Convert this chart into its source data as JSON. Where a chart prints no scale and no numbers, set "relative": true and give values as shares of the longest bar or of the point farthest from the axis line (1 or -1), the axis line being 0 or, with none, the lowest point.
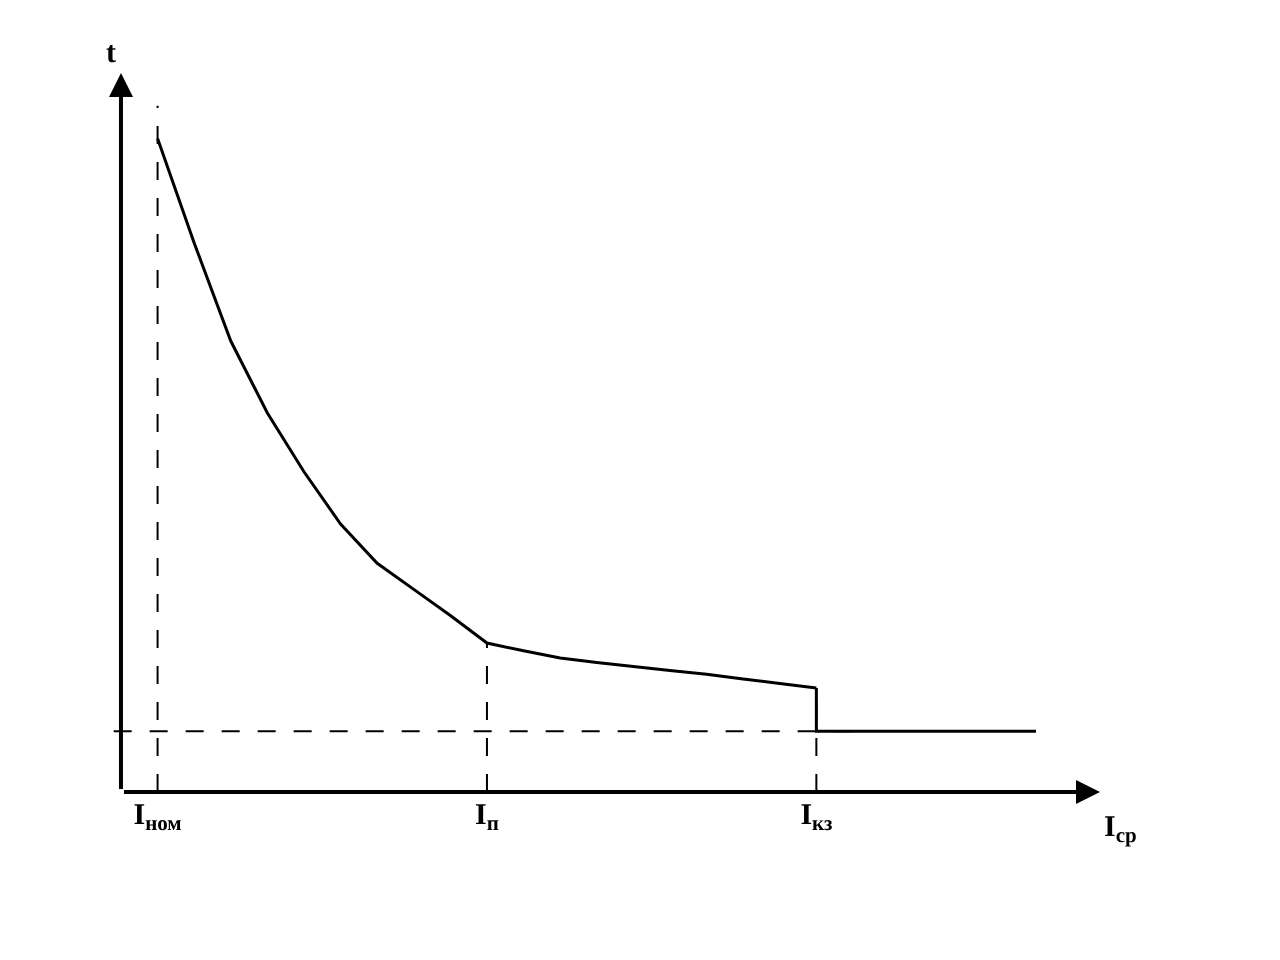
{
  "chart_data": {
    "type": "line",
    "relative": true,
    "xlabel": "I$_{ср}$",
    "ylabel": "t",
    "categories": [
      "I$_{ном}$",
      null,
      null,
      null,
      null,
      null,
      null,
      null,
      null,
      "I$_{п}$",
      null,
      null,
      null,
      null,
      null,
      null,
      null,
      null,
      "I$_{кз}$",
      null,
      null,
      null,
      null,
      null,
      null
    ],
    "series": [
      {
        "color": "#000000",
        "values": [
          1.0,
          0.84,
          0.69,
          0.58,
          0.49,
          0.41,
          0.35,
          0.31,
          0.27,
          0.228,
          0.216,
          0.205,
          0.198,
          0.192,
          0.186,
          0.18,
          0.173,
          0.166,
          0.159,
          null,
          null,
          null,
          null,
          null,
          null
        ]
      },
      {
        "type": "step",
        "color": "#000000",
        "values": [
          null,
          null,
          null,
          null,
          null,
          null,
          null,
          null,
          null,
          null,
          null,
          null,
          null,
          null,
          null,
          null,
          null,
          null,
          0.159,
          0.093,
          0.093,
          0.093,
          0.093,
          0.093,
          0.093
        ]
      }
    ],
    "ref_lines": [
      {
        "axis": "y",
        "value": 0.093,
        "color": "#000000",
        "line_style": "dashed"
      },
      {
        "axis": "x",
        "value": "I$_{ном}$",
        "color": "#000000",
        "line_style": "dashed"
      },
      {
        "axis": "x",
        "value": "I$_{п}$",
        "color": "#000000",
        "line_style": "dashed"
      },
      {
        "axis": "x",
        "value": "I$_{кз}$",
        "color": "#000000",
        "line_style": "dashed"
      }
    ],
    "marker": "none",
    "line_style": "solid"
  }
}
